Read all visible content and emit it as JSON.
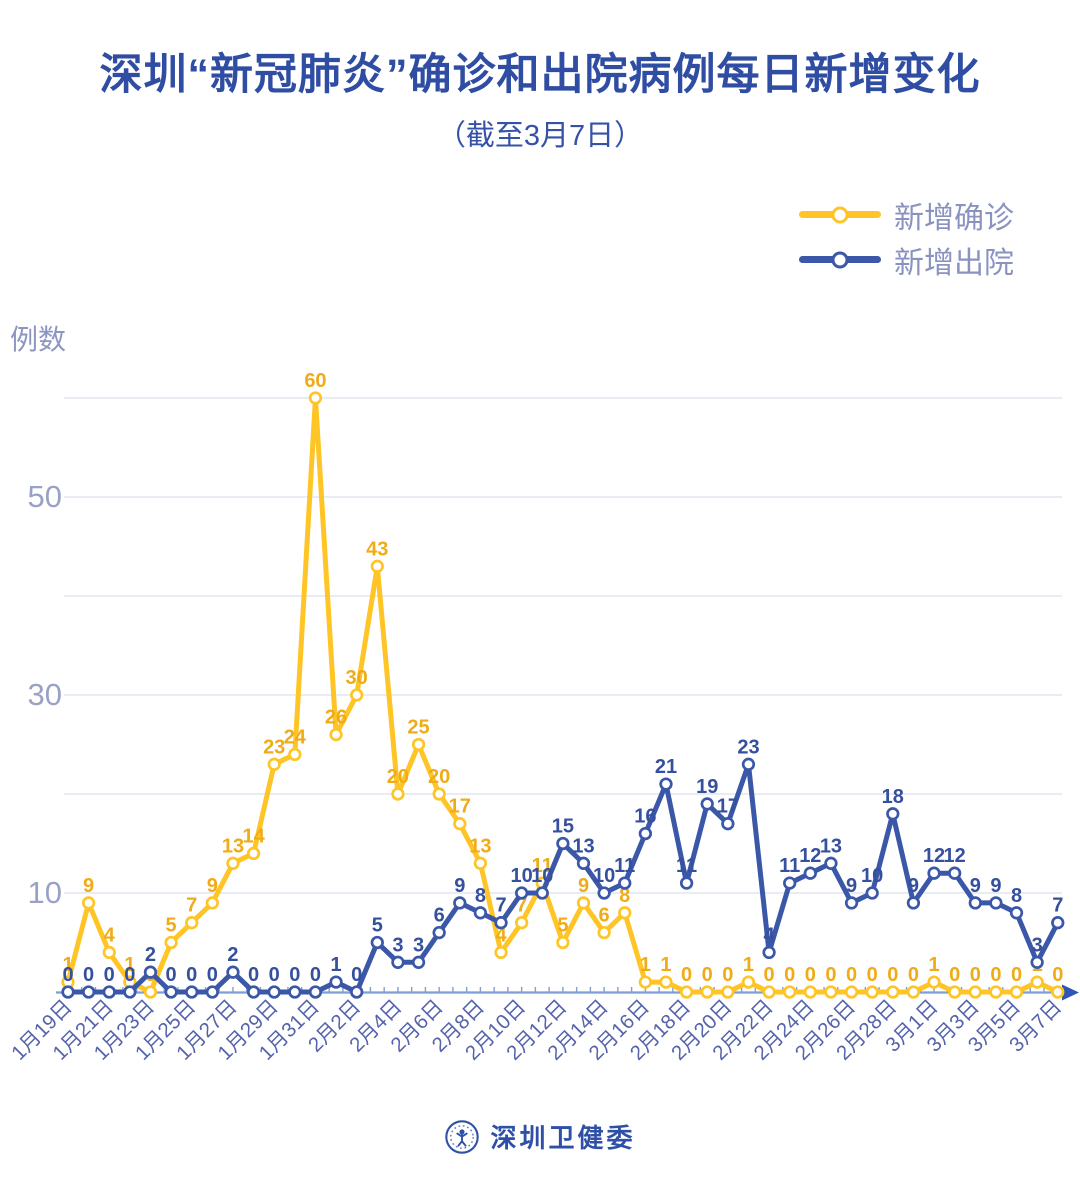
{
  "page": {
    "title": "深圳“新冠肺炎”确诊和出院病例每日新增变化",
    "subtitle": "（截至3月7日）"
  },
  "legend": {
    "confirmed": "新增确诊",
    "discharged": "新增出院"
  },
  "footer": {
    "source": "深圳卫健委"
  },
  "colors": {
    "title": "#2F4DA2",
    "confirmed_line": "#FFC425",
    "confirmed_label": "#F0AC18",
    "discharged_line": "#3A57A8",
    "discharged_label": "#35509E",
    "axis_line": "#7E9FD4",
    "axis_arrow": "#2F55B5",
    "gridline": "#E4E6F0",
    "x_tick_label": "#5563AC",
    "y_tick_label": "#99A2C6",
    "legend_text": "#8A93BF"
  },
  "chart_data": {
    "type": "line",
    "title": "深圳“新冠肺炎”确诊和出院病例每日新增变化",
    "subtitle": "（截至3月7日）",
    "ylabel": "例数",
    "xlabel": "",
    "grid": true,
    "legend_position": "top-right",
    "point_labels": true,
    "ylim": [
      0,
      62
    ],
    "yticks": [
      10,
      30,
      50
    ],
    "gridlines": [
      10,
      20,
      30,
      40,
      50,
      60
    ],
    "x_label_interval": 2,
    "x": [
      "1月19日",
      "1月20日",
      "1月21日",
      "1月22日",
      "1月23日",
      "1月24日",
      "1月25日",
      "1月26日",
      "1月27日",
      "1月28日",
      "1月29日",
      "1月30日",
      "1月31日",
      "2月1日",
      "2月2日",
      "2月3日",
      "2月4日",
      "2月5日",
      "2月6日",
      "2月7日",
      "2月8日",
      "2月9日",
      "2月10日",
      "2月11日",
      "2月12日",
      "2月13日",
      "2月14日",
      "2月15日",
      "2月16日",
      "2月17日",
      "2月18日",
      "2月19日",
      "2月20日",
      "2月21日",
      "2月22日",
      "2月23日",
      "2月24日",
      "2月25日",
      "2月26日",
      "2月27日",
      "2月28日",
      "2月29日",
      "3月1日",
      "3月2日",
      "3月3日",
      "3月4日",
      "3月5日",
      "3月6日",
      "3月7日"
    ],
    "series": [
      {
        "name": "新增确诊",
        "color": "#FFC425",
        "label_color": "#F0AC18",
        "values": [
          1,
          9,
          4,
          1,
          0,
          5,
          7,
          9,
          13,
          14,
          23,
          24,
          60,
          26,
          30,
          43,
          20,
          25,
          20,
          17,
          13,
          4,
          7,
          11,
          5,
          9,
          6,
          8,
          1,
          1,
          0,
          0,
          0,
          1,
          0,
          0,
          0,
          0,
          0,
          0,
          0,
          0,
          1,
          0,
          0,
          0,
          0,
          1,
          0
        ]
      },
      {
        "name": "新增出院",
        "color": "#3A57A8",
        "label_color": "#35509E",
        "values": [
          0,
          0,
          0,
          0,
          2,
          0,
          0,
          0,
          2,
          0,
          0,
          0,
          0,
          1,
          0,
          5,
          3,
          3,
          6,
          9,
          8,
          7,
          10,
          10,
          15,
          13,
          10,
          11,
          16,
          21,
          11,
          19,
          17,
          23,
          4,
          11,
          12,
          13,
          9,
          10,
          18,
          9,
          12,
          12,
          9,
          9,
          8,
          3,
          7
        ]
      }
    ]
  }
}
